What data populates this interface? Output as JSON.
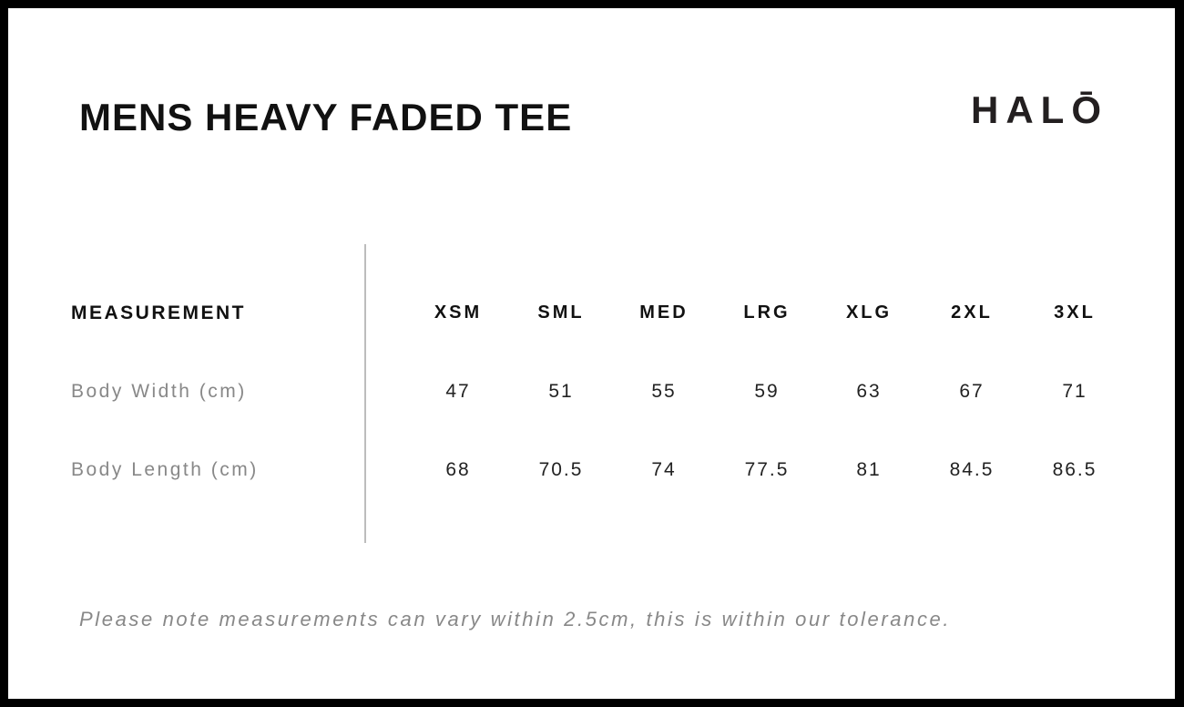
{
  "title": "MENS HEAVY FADED TEE",
  "brand": {
    "prefix": "HAL",
    "last_letter": "O",
    "full": "HALŌ"
  },
  "table": {
    "header_label": "MEASUREMENT",
    "sizes": [
      "XSM",
      "SML",
      "MED",
      "LRG",
      "XLG",
      "2XL",
      "3XL"
    ],
    "rows": [
      {
        "label": "Body Width (cm)",
        "values": [
          "47",
          "51",
          "55",
          "59",
          "63",
          "67",
          "71"
        ]
      },
      {
        "label": "Body Length (cm)",
        "values": [
          "68",
          "70.5",
          "74",
          "77.5",
          "81",
          "84.5",
          "86.5"
        ]
      }
    ]
  },
  "note": "Please note measurements can vary within 2.5cm, this is within our tolerance."
}
